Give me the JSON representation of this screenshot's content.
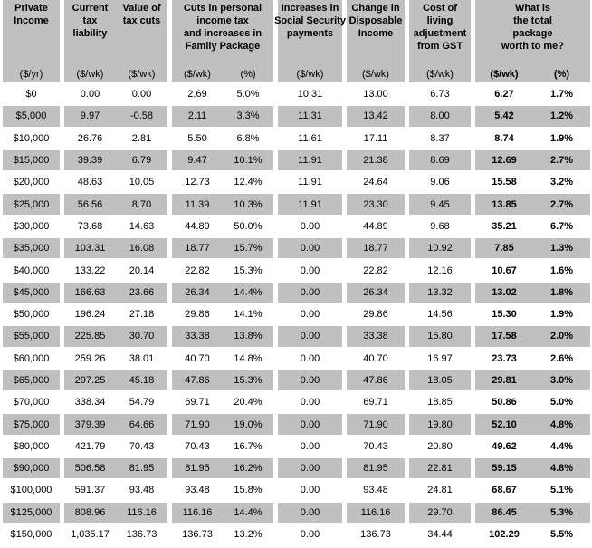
{
  "colors": {
    "row_shade": "#c0c0c0",
    "row_alt": "#ffffff",
    "text": "#000000",
    "background": "#ffffff"
  },
  "chart_data": {
    "type": "table",
    "column_groups": [
      {
        "title": "Private\nIncome",
        "units": [
          "($/yr)"
        ]
      },
      {
        "title": "Current\ntax\nliability",
        "units": [
          "($/wk)"
        ]
      },
      {
        "title": "Value of\ntax cuts",
        "units": [
          "($/wk)"
        ]
      },
      {
        "title": "Cuts in personal\nincome tax\nand increases in\nFamily Package\nBenefits",
        "units": [
          "($/wk)",
          "(%)"
        ]
      },
      {
        "title": "Increases in\nSocial Security\npayments",
        "units": [
          "($/wk)"
        ]
      },
      {
        "title": "Change in\nDisposable\nIncome",
        "units": [
          "($/wk)"
        ]
      },
      {
        "title": "Cost of\nliving\nadjustment\nfrom GST",
        "units": [
          "($/wk)"
        ]
      },
      {
        "title": "What is\nthe total\npackage\nworth to me?",
        "units": [
          "($/wk)",
          "(%)"
        ]
      }
    ],
    "columns": [
      "Private Income ($/yr)",
      "Current tax liability ($/wk)",
      "Value of tax cuts ($/wk)",
      "Cuts in personal income tax and increases in Family Package Benefits ($/wk)",
      "Cuts in personal income tax and increases in Family Package Benefits (%)",
      "Increases in Social Security payments ($/wk)",
      "Change in Disposable Income ($/wk)",
      "Cost of living adjustment from GST ($/wk)",
      "What is the total package worth to me? ($/wk)",
      "What is the total package worth to me? (%)"
    ],
    "rows": [
      [
        "$0",
        "0.00",
        "0.00",
        "2.69",
        "5.0%",
        "10.31",
        "13.00",
        "6.73",
        "6.27",
        "1.7%"
      ],
      [
        "$5,000",
        "9.97",
        "-0.58",
        "2.11",
        "3.3%",
        "11.31",
        "13.42",
        "8.00",
        "5.42",
        "1.2%"
      ],
      [
        "$10,000",
        "26.76",
        "2.81",
        "5.50",
        "6.8%",
        "11.61",
        "17.11",
        "8.37",
        "8.74",
        "1.9%"
      ],
      [
        "$15,000",
        "39.39",
        "6.79",
        "9.47",
        "10.1%",
        "11.91",
        "21.38",
        "8.69",
        "12.69",
        "2.7%"
      ],
      [
        "$20,000",
        "48.63",
        "10.05",
        "12.73",
        "12.4%",
        "11.91",
        "24.64",
        "9.06",
        "15.58",
        "3.2%"
      ],
      [
        "$25,000",
        "56.56",
        "8.70",
        "11.39",
        "10.3%",
        "11.91",
        "23.30",
        "9.45",
        "13.85",
        "2.7%"
      ],
      [
        "$30,000",
        "73.68",
        "14.63",
        "44.89",
        "50.0%",
        "0.00",
        "44.89",
        "9.68",
        "35.21",
        "6.7%"
      ],
      [
        "$35,000",
        "103.31",
        "16.08",
        "18.77",
        "15.7%",
        "0.00",
        "18.77",
        "10.92",
        "7.85",
        "1.3%"
      ],
      [
        "$40,000",
        "133.22",
        "20.14",
        "22.82",
        "15.3%",
        "0.00",
        "22.82",
        "12.16",
        "10.67",
        "1.6%"
      ],
      [
        "$45,000",
        "166.63",
        "23.66",
        "26.34",
        "14.4%",
        "0.00",
        "26.34",
        "13.32",
        "13.02",
        "1.8%"
      ],
      [
        "$50,000",
        "196.24",
        "27.18",
        "29.86",
        "14.1%",
        "0.00",
        "29.86",
        "14.56",
        "15.30",
        "1.9%"
      ],
      [
        "$55,000",
        "225.85",
        "30.70",
        "33.38",
        "13.8%",
        "0.00",
        "33.38",
        "15.80",
        "17.58",
        "2.0%"
      ],
      [
        "$60,000",
        "259.26",
        "38.01",
        "40.70",
        "14.8%",
        "0.00",
        "40.70",
        "16.97",
        "23.73",
        "2.6%"
      ],
      [
        "$65,000",
        "297.25",
        "45.18",
        "47.86",
        "15.3%",
        "0.00",
        "47.86",
        "18.05",
        "29.81",
        "3.0%"
      ],
      [
        "$70,000",
        "338.34",
        "54.79",
        "69.71",
        "20.4%",
        "0.00",
        "69.71",
        "18.85",
        "50.86",
        "5.0%"
      ],
      [
        "$75,000",
        "379.39",
        "64.66",
        "71.90",
        "19.0%",
        "0.00",
        "71.90",
        "19.80",
        "52.10",
        "4.8%"
      ],
      [
        "$80,000",
        "421.79",
        "70.43",
        "70.43",
        "16.7%",
        "0.00",
        "70.43",
        "20.80",
        "49.62",
        "4.4%"
      ],
      [
        "$90,000",
        "506.58",
        "81.95",
        "81.95",
        "16.2%",
        "0.00",
        "81.95",
        "22.81",
        "59.15",
        "4.8%"
      ],
      [
        "$100,000",
        "591.37",
        "93.48",
        "93.48",
        "15.8%",
        "0.00",
        "93.48",
        "24.81",
        "68.67",
        "5.1%"
      ],
      [
        "$125,000",
        "808.96",
        "116.16",
        "116.16",
        "14.4%",
        "0.00",
        "116.16",
        "29.70",
        "86.45",
        "5.3%"
      ],
      [
        "$150,000",
        "1,035.17",
        "136.73",
        "136.73",
        "13.2%",
        "0.00",
        "136.73",
        "34.44",
        "102.29",
        "5.5%"
      ]
    ]
  }
}
